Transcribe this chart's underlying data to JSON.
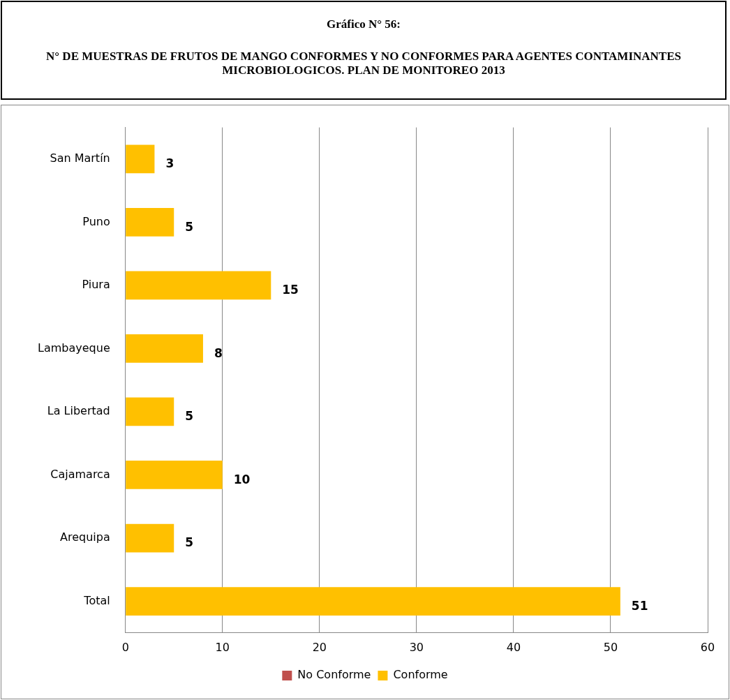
{
  "chart_data": {
    "type": "bar",
    "orientation": "horizontal",
    "stacked": true,
    "title": "Gráfico N° 56:",
    "subtitle": "N° DE MUESTRAS DE FRUTOS DE MANGO CONFORMES Y NO CONFORMES PARA AGENTES CONTAMINANTES MICROBIOLOGICOS. PLAN DE MONITOREO 2013",
    "categories": [
      "San Martín",
      "Puno",
      "Piura",
      "Lambayeque",
      "La Libertad",
      "Cajamarca",
      "Arequipa",
      "Total"
    ],
    "series": [
      {
        "name": "No Conforme",
        "color": "#c0504d",
        "values": [
          0,
          0,
          0,
          0,
          0,
          0,
          0,
          0
        ]
      },
      {
        "name": "Conforme",
        "color": "#ffc000",
        "values": [
          3,
          5,
          15,
          8,
          5,
          10,
          5,
          51
        ],
        "value_labels": [
          "3",
          "5",
          "15",
          "8",
          "5",
          "10",
          "5",
          "51"
        ]
      }
    ],
    "xlim": [
      0,
      60
    ],
    "xticks": [
      0,
      10,
      20,
      30,
      40,
      50,
      60
    ],
    "grid": "x",
    "legend": "bottom"
  }
}
